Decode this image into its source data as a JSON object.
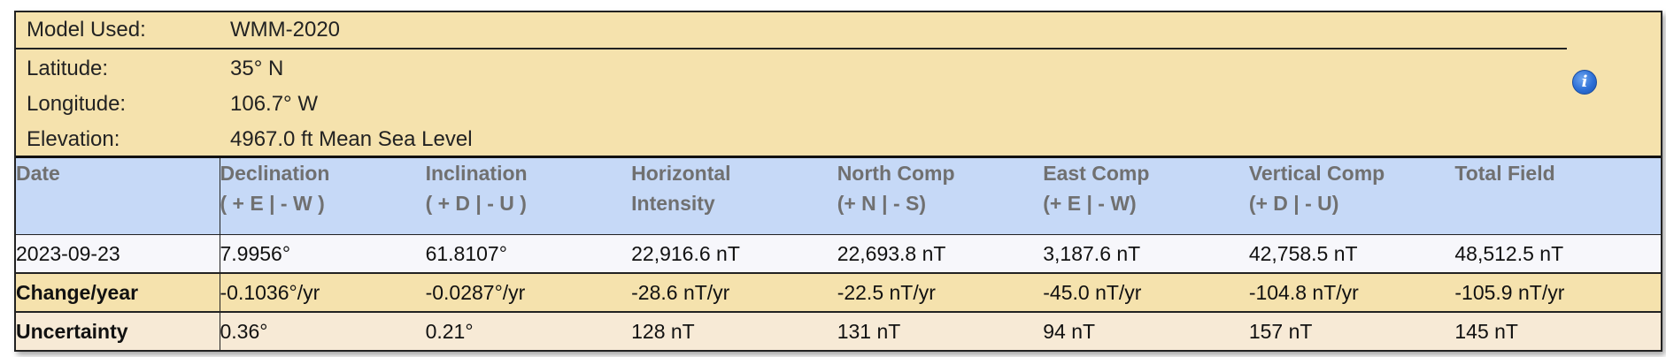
{
  "model": {
    "model_label": "Model Used:",
    "model_value": "WMM-2020",
    "latitude_label": "Latitude:",
    "latitude_value": "35° N",
    "longitude_label": "Longitude:",
    "longitude_value": "106.7° W",
    "elevation_label": "Elevation:",
    "elevation_value": "4967.0 ft Mean Sea Level",
    "info_icon": "info-icon"
  },
  "table": {
    "headers": [
      {
        "line1": "Date",
        "line2": ""
      },
      {
        "line1": "Declination",
        "line2": "( + E  | - W )"
      },
      {
        "line1": "Inclination",
        "line2": "( + D  | - U )"
      },
      {
        "line1": "Horizontal",
        "line2": "Intensity"
      },
      {
        "line1": "North Comp",
        "line2": "(+ N  | - S)"
      },
      {
        "line1": "East Comp",
        "line2": "(+ E  | - W)"
      },
      {
        "line1": "Vertical Comp",
        "line2": "(+ D  | - U)"
      },
      {
        "line1": "Total Field",
        "line2": ""
      }
    ],
    "rows": [
      {
        "label": "2023-09-23",
        "cells": [
          "7.9956°",
          "61.8107°",
          "22,916.6 nT",
          "22,693.8 nT",
          "3,187.6 nT",
          "42,758.5 nT",
          "48,512.5 nT"
        ]
      },
      {
        "label": "Change/year",
        "cells": [
          "-0.1036°/yr",
          "-0.0287°/yr",
          "-28.6 nT/yr",
          "-22.5 nT/yr",
          "-45.0 nT/yr",
          "-104.8 nT/yr",
          "-105.9 nT/yr"
        ]
      },
      {
        "label": "Uncertainty",
        "cells": [
          "0.36°",
          "0.21°",
          "128 nT",
          "131 nT",
          "94 nT",
          "157 nT",
          "145 nT"
        ]
      }
    ]
  },
  "colors": {
    "model_bg": "#f5e2ad",
    "header_bg": "#c6d9f7",
    "value_row_bg": "#f7f7fb",
    "change_row_bg": "#f5e2ad",
    "uncertainty_row_bg": "#f7ead6",
    "info_icon": "#2c6fd6"
  }
}
